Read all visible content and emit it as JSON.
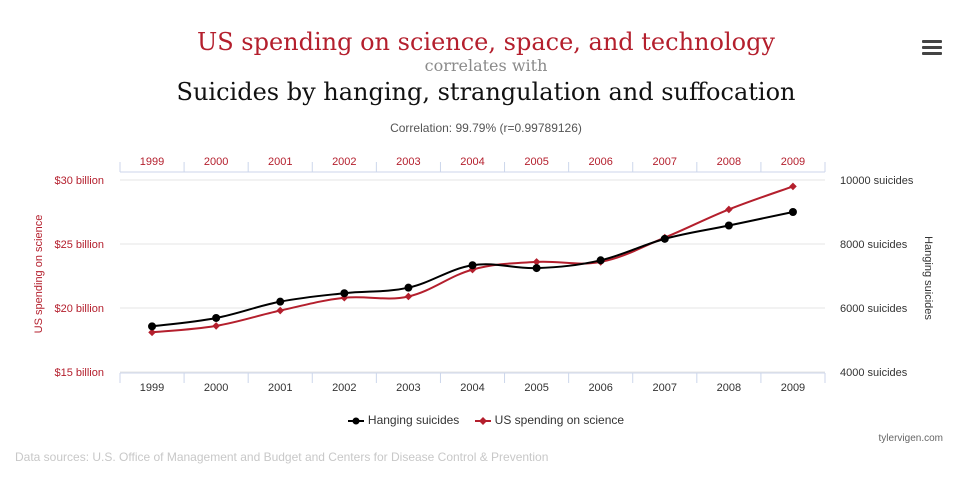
{
  "header": {
    "title": "US spending on science, space, and technology",
    "connector": "correlates with",
    "subtitle": "Suicides by hanging, strangulation and suffocation",
    "correlation": "Correlation: 99.79% (r=0.99789126)"
  },
  "menu": {
    "icon": "hamburger-menu-icon"
  },
  "footer": {
    "sources": "Data sources: U.S. Office of Management and Budget and Centers for Disease Control & Prevention",
    "credit": "tylervigen.com"
  },
  "colors": {
    "science": "#b41f2d",
    "suicides": "#000000",
    "grid": "#e6e6e6",
    "axis": "#ccd6eb"
  },
  "chart_data": {
    "type": "line",
    "x": [
      1999,
      2000,
      2001,
      2002,
      2003,
      2004,
      2005,
      2006,
      2007,
      2008,
      2009
    ],
    "x_tick_labels": [
      "1999",
      "2000",
      "2001",
      "2002",
      "2003",
      "2004",
      "2005",
      "2006",
      "2007",
      "2008",
      "2009"
    ],
    "series": [
      {
        "name": "Hanging suicides",
        "axis": "right",
        "color": "#000000",
        "marker": "circle",
        "values": [
          5427,
          5688,
          6198,
          6462,
          6635,
          7336,
          7248,
          7491,
          8161,
          8578,
          9000
        ]
      },
      {
        "name": "US spending on science",
        "axis": "left",
        "color": "#b41f2d",
        "marker": "diamond",
        "values": [
          18.1,
          18.6,
          19.8,
          20.8,
          20.9,
          23.0,
          23.6,
          23.6,
          25.5,
          27.7,
          29.5
        ]
      }
    ],
    "left_axis": {
      "label": "US spending on science",
      "range": [
        15,
        30
      ],
      "ticks": [
        15,
        20,
        25,
        30
      ],
      "tick_labels": [
        "$15 billion",
        "$20 billion",
        "$25 billion",
        "$30 billion"
      ]
    },
    "right_axis": {
      "label": "Hanging suicides",
      "range": [
        4000,
        10000
      ],
      "ticks": [
        4000,
        6000,
        8000,
        10000
      ],
      "tick_labels": [
        "4000 suicides",
        "6000 suicides",
        "8000 suicides",
        "10000 suicides"
      ]
    },
    "grid": true,
    "legend": "bottom-center"
  }
}
